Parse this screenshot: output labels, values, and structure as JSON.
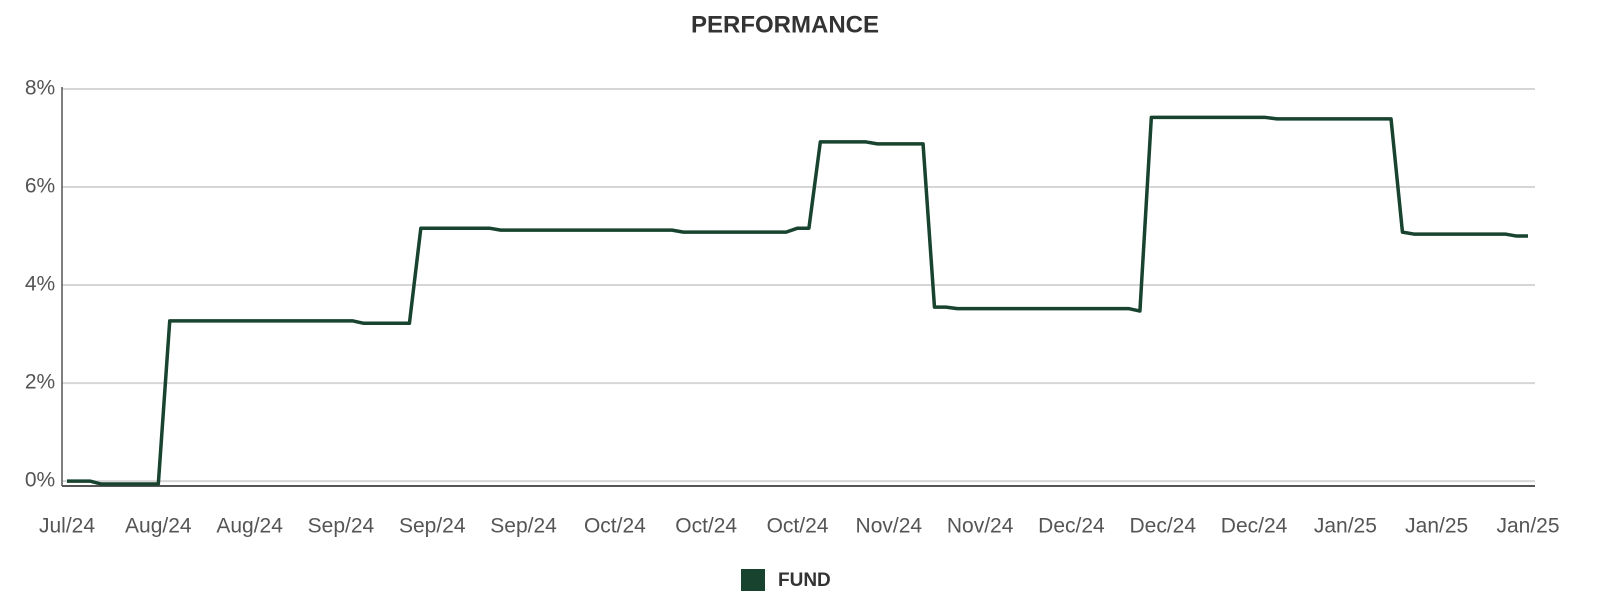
{
  "chart_data": {
    "type": "line",
    "title": "PERFORMANCE",
    "categories": [
      "Jul/24",
      null,
      null,
      null,
      null,
      null,
      null,
      null,
      "Aug/24",
      null,
      null,
      null,
      null,
      null,
      null,
      null,
      "Aug/24",
      null,
      null,
      null,
      null,
      null,
      null,
      null,
      "Sep/24",
      null,
      null,
      null,
      null,
      null,
      null,
      null,
      "Sep/24",
      null,
      null,
      null,
      null,
      null,
      null,
      null,
      "Sep/24",
      null,
      null,
      null,
      null,
      null,
      null,
      null,
      "Oct/24",
      null,
      null,
      null,
      null,
      null,
      null,
      null,
      "Oct/24",
      null,
      null,
      null,
      null,
      null,
      null,
      null,
      "Oct/24",
      null,
      null,
      null,
      null,
      null,
      null,
      null,
      "Nov/24",
      null,
      null,
      null,
      null,
      null,
      null,
      null,
      "Nov/24",
      null,
      null,
      null,
      null,
      null,
      null,
      null,
      "Dec/24",
      null,
      null,
      null,
      null,
      null,
      null,
      null,
      "Dec/24",
      null,
      null,
      null,
      null,
      null,
      null,
      null,
      "Dec/24",
      null,
      null,
      null,
      null,
      null,
      null,
      null,
      "Jan/25",
      null,
      null,
      null,
      null,
      null,
      null,
      null,
      "Jan/25",
      null,
      null,
      null,
      null,
      null,
      null,
      null,
      "Jan/25"
    ],
    "series": [
      {
        "name": "FUND",
        "color": "#17432f",
        "values": [
          0,
          0,
          0,
          -0.06,
          -0.06,
          -0.06,
          -0.06,
          -0.06,
          -0.06,
          3.27,
          3.27,
          3.27,
          3.27,
          3.27,
          3.27,
          3.27,
          3.27,
          3.27,
          3.27,
          3.27,
          3.27,
          3.27,
          3.27,
          3.27,
          3.27,
          3.27,
          3.22,
          3.22,
          3.22,
          3.22,
          3.22,
          5.16,
          5.16,
          5.16,
          5.16,
          5.16,
          5.16,
          5.16,
          5.12,
          5.12,
          5.12,
          5.12,
          5.12,
          5.12,
          5.12,
          5.12,
          5.12,
          5.12,
          5.12,
          5.12,
          5.12,
          5.12,
          5.12,
          5.12,
          5.08,
          5.08,
          5.08,
          5.08,
          5.08,
          5.08,
          5.08,
          5.08,
          5.08,
          5.08,
          5.16,
          5.16,
          6.92,
          6.92,
          6.92,
          6.92,
          6.92,
          6.88,
          6.88,
          6.88,
          6.88,
          6.88,
          3.55,
          3.55,
          3.52,
          3.52,
          3.52,
          3.52,
          3.52,
          3.52,
          3.52,
          3.52,
          3.52,
          3.52,
          3.52,
          3.52,
          3.52,
          3.52,
          3.52,
          3.52,
          3.47,
          7.42,
          7.42,
          7.42,
          7.42,
          7.42,
          7.42,
          7.42,
          7.42,
          7.42,
          7.42,
          7.42,
          7.39,
          7.39,
          7.39,
          7.39,
          7.39,
          7.39,
          7.39,
          7.39,
          7.39,
          7.39,
          7.39,
          5.08,
          5.04,
          5.04,
          5.04,
          5.04,
          5.04,
          5.04,
          5.04,
          5.04,
          5.04,
          5.0,
          5.0
        ]
      }
    ],
    "ylim": [
      -0.1,
      8
    ],
    "yticks": [
      {
        "value": 0,
        "label": "0%"
      },
      {
        "value": 2,
        "label": "2%"
      },
      {
        "value": 4,
        "label": "4%"
      },
      {
        "value": 6,
        "label": "6%"
      },
      {
        "value": 8,
        "label": "8%"
      }
    ],
    "grid": true,
    "legend": "bottom"
  }
}
